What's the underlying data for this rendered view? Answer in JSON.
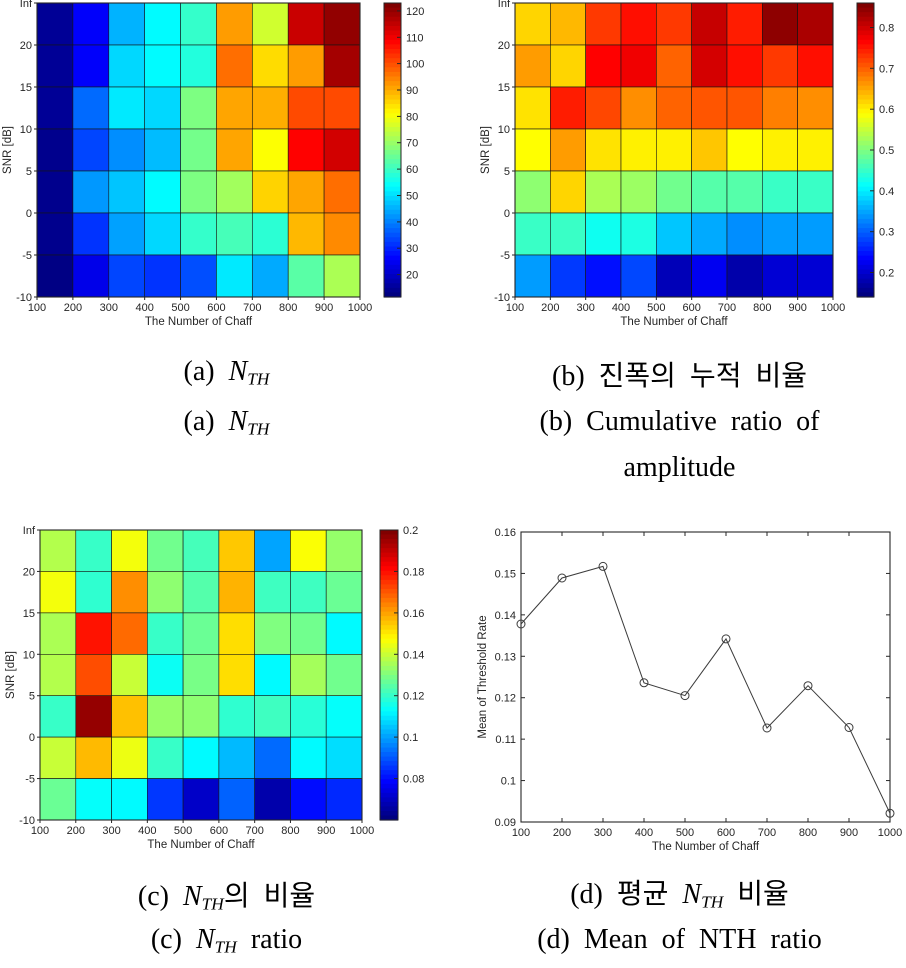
{
  "figure": {
    "background": "#ffffff",
    "axis_color": "#262626",
    "colormap": "jet"
  },
  "captions": [
    {
      "id": "a_ko",
      "segs": [
        [
          "(a) ",
          "r"
        ],
        [
          "N",
          "i"
        ],
        [
          "TH",
          "s"
        ]
      ]
    },
    {
      "id": "a_en",
      "segs": [
        [
          "(a) ",
          "r"
        ],
        [
          "N",
          "i"
        ],
        [
          "TH",
          "s"
        ]
      ]
    },
    {
      "id": "b_ko",
      "segs": [
        [
          "(b) 진폭의 누적 비율",
          "r"
        ]
      ]
    },
    {
      "id": "b_en1",
      "segs": [
        [
          "(b) Cumulative ratio of",
          "r"
        ]
      ]
    },
    {
      "id": "b_en2",
      "segs": [
        [
          "amplitude",
          "r"
        ]
      ]
    },
    {
      "id": "c_ko",
      "segs": [
        [
          "(c) ",
          "r"
        ],
        [
          "N",
          "i"
        ],
        [
          "TH",
          "s"
        ],
        [
          "의 비율",
          "r"
        ]
      ]
    },
    {
      "id": "c_en",
      "segs": [
        [
          "(c) ",
          "r"
        ],
        [
          "N",
          "i"
        ],
        [
          "TH",
          "s"
        ],
        [
          " ratio",
          "r"
        ]
      ]
    },
    {
      "id": "d_ko",
      "segs": [
        [
          "(d) 평균 ",
          "r"
        ],
        [
          "N",
          "i"
        ],
        [
          "TH",
          "s"
        ],
        [
          " 비율",
          "r"
        ]
      ]
    },
    {
      "id": "d_en",
      "segs": [
        [
          "(d) Mean of NTH ratio",
          "r"
        ]
      ]
    }
  ],
  "chart_data": [
    {
      "id": "a",
      "type": "heatmap",
      "title": "N_TH",
      "xlabel": "The Number of Chaff",
      "ylabel": "SNR [dB]",
      "x_ticks": [
        "100",
        "200",
        "300",
        "400",
        "500",
        "600",
        "700",
        "800",
        "900",
        "1000"
      ],
      "y_ticks": [
        "Inf",
        "20",
        "15",
        "10",
        "5",
        "0",
        "-5",
        "-10"
      ],
      "colorbar_ticks": [
        "120",
        "110",
        "100",
        "90",
        "80",
        "70",
        "60",
        "50",
        "40",
        "30",
        "20"
      ],
      "vmin": 11.5,
      "vmax": 123,
      "grid": true,
      "values": [
        [
          14,
          25,
          45,
          53,
          59,
          92,
          76,
          115,
          121
        ],
        [
          14,
          25,
          49,
          53,
          57,
          97,
          85,
          92,
          119
        ],
        [
          14,
          37,
          51,
          49,
          67,
          91,
          90,
          101,
          101
        ],
        [
          13,
          33,
          41,
          46,
          66,
          91,
          81,
          109,
          114
        ],
        [
          13,
          42,
          47,
          53,
          67,
          71,
          86,
          91,
          97
        ],
        [
          13,
          31,
          43,
          49,
          59,
          61,
          58,
          89,
          94
        ],
        [
          12,
          23,
          33,
          31,
          34,
          51,
          44,
          63,
          72
        ]
      ]
    },
    {
      "id": "b",
      "type": "heatmap",
      "title": "Cumulative ratio of amplitude",
      "xlabel": "The Number of Chaff",
      "ylabel": "SNR [dB]",
      "x_ticks": [
        "100",
        "200",
        "300",
        "400",
        "500",
        "600",
        "700",
        "800",
        "900",
        "1000"
      ],
      "y_ticks": [
        "Inf",
        "20",
        "15",
        "10",
        "5",
        "0",
        "-5",
        "-10"
      ],
      "colorbar_ticks": [
        "0.8",
        "0.7",
        "0.6",
        "0.5",
        "0.4",
        "0.3",
        "0.2"
      ],
      "vmin": 0.14,
      "vmax": 0.86,
      "grid": true,
      "values": [
        [
          0.62,
          0.64,
          0.73,
          0.76,
          0.73,
          0.81,
          0.75,
          0.85,
          0.83
        ],
        [
          0.66,
          0.62,
          0.77,
          0.78,
          0.7,
          0.8,
          0.76,
          0.73,
          0.76
        ],
        [
          0.61,
          0.75,
          0.72,
          0.67,
          0.7,
          0.71,
          0.71,
          0.68,
          0.67
        ],
        [
          0.59,
          0.66,
          0.61,
          0.6,
          0.6,
          0.63,
          0.59,
          0.6,
          0.6
        ],
        [
          0.51,
          0.62,
          0.53,
          0.52,
          0.49,
          0.47,
          0.47,
          0.45,
          0.45
        ],
        [
          0.45,
          0.45,
          0.42,
          0.43,
          0.37,
          0.35,
          0.33,
          0.34,
          0.34
        ],
        [
          0.34,
          0.27,
          0.24,
          0.28,
          0.18,
          0.22,
          0.17,
          0.2,
          0.2
        ]
      ]
    },
    {
      "id": "c",
      "type": "heatmap",
      "title": "N_TH ratio",
      "xlabel": "The Number of Chaff",
      "ylabel": "SNR [dB]",
      "x_ticks": [
        "100",
        "200",
        "300",
        "400",
        "500",
        "600",
        "700",
        "800",
        "900",
        "1000"
      ],
      "y_ticks": [
        "Inf",
        "20",
        "15",
        "10",
        "5",
        "0",
        "-5",
        "-10"
      ],
      "colorbar_ticks": [
        "0.2",
        "0.18",
        "0.16",
        "0.14",
        "0.12",
        "0.1",
        "0.08"
      ],
      "vmin": 0.06,
      "vmax": 0.2,
      "grid": true,
      "values": [
        [
          0.137,
          0.12,
          0.146,
          0.128,
          0.122,
          0.155,
          0.1,
          0.147,
          0.133
        ],
        [
          0.146,
          0.119,
          0.163,
          0.132,
          0.124,
          0.158,
          0.121,
          0.121,
          0.127
        ],
        [
          0.136,
          0.18,
          0.168,
          0.12,
          0.127,
          0.152,
          0.13,
          0.128,
          0.112
        ],
        [
          0.137,
          0.172,
          0.14,
          0.114,
          0.129,
          0.152,
          0.112,
          0.135,
          0.128
        ],
        [
          0.12,
          0.197,
          0.156,
          0.133,
          0.132,
          0.119,
          0.121,
          0.118,
          0.113
        ],
        [
          0.14,
          0.157,
          0.145,
          0.12,
          0.112,
          0.103,
          0.092,
          0.112,
          0.108
        ],
        [
          0.127,
          0.113,
          0.112,
          0.085,
          0.07,
          0.091,
          0.066,
          0.079,
          0.083
        ]
      ]
    },
    {
      "id": "d",
      "type": "line",
      "title": "Mean of NTH ratio",
      "xlabel": "The Number of Chaff",
      "ylabel": "Mean of Threshold Rate",
      "x": [
        100,
        200,
        300,
        400,
        500,
        600,
        700,
        800,
        900,
        1000
      ],
      "y": [
        0.1378,
        0.1489,
        0.1517,
        0.1236,
        0.1205,
        0.1342,
        0.1127,
        0.1229,
        0.1128,
        0.0921
      ],
      "x_ticks": [
        "100",
        "200",
        "300",
        "400",
        "500",
        "600",
        "700",
        "800",
        "900",
        "1000"
      ],
      "y_ticks": [
        "0.09",
        "0.1",
        "0.11",
        "0.12",
        "0.13",
        "0.14",
        "0.15",
        "0.16"
      ],
      "xlim": [
        100,
        1000
      ],
      "ylim": [
        0.09,
        0.16
      ],
      "marker": "circle",
      "line_color": "#3b3b3b",
      "grid": false,
      "legend": null
    }
  ]
}
